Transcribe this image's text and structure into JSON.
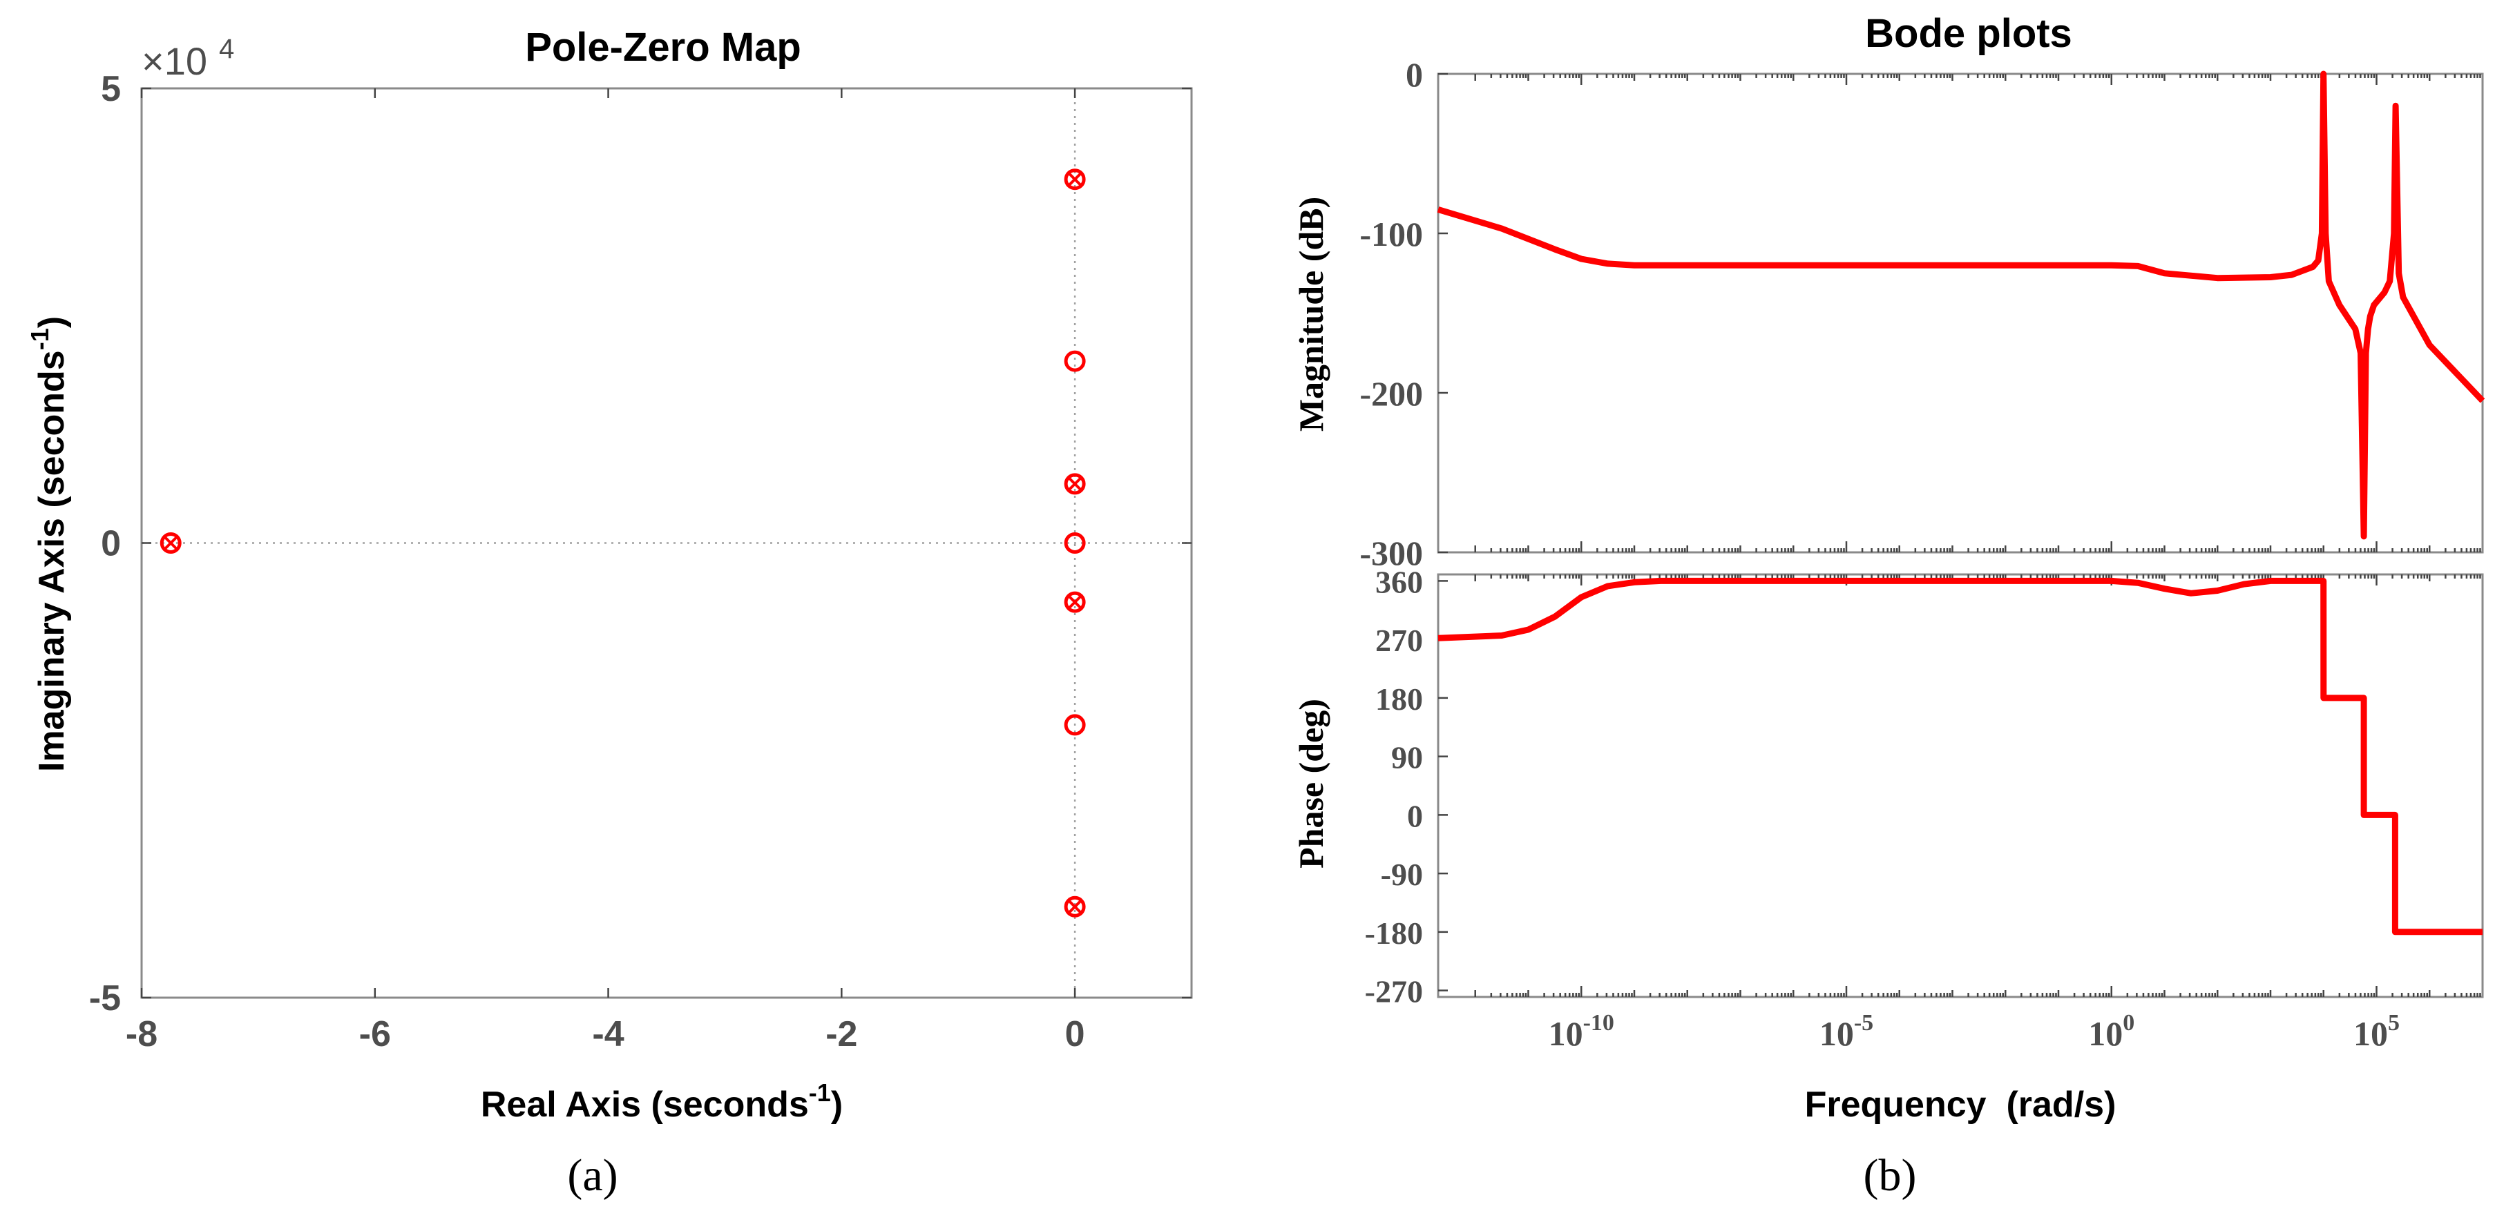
{
  "chart_data": [
    {
      "type": "scatter",
      "title": "Pole-Zero Map",
      "xlabel": "Real Axis (seconds",
      "ylabel": "Imaginary Axis (seconds",
      "label_exponent": "-1",
      "y_multiplier": "×10",
      "y_multiplier_exp": "4",
      "xlim": [
        -8,
        1
      ],
      "ylim": [
        -50000,
        50000
      ],
      "x_ticks": [
        -8,
        -6,
        -4,
        -2,
        0
      ],
      "x_tick_labels": [
        "-8",
        "-6",
        "-4",
        "-2",
        "0"
      ],
      "y_ticks": [
        -50000,
        0,
        50000
      ],
      "y_tick_labels": [
        "-5",
        "0",
        "5"
      ],
      "series": [
        {
          "name": "pole",
          "marker": "x",
          "x": [
            -7.75,
            0,
            0,
            0,
            0
          ],
          "y": [
            0,
            40000,
            6500,
            -6500,
            -40000
          ]
        },
        {
          "name": "zero",
          "marker": "o",
          "x": [
            -7.75,
            0,
            0,
            0,
            0,
            0,
            0,
            0
          ],
          "y": [
            0,
            40000,
            20000,
            6500,
            0,
            -6500,
            -20000,
            -40000
          ]
        }
      ],
      "caption": "(a)"
    },
    {
      "type": "line",
      "title": "Bode plots",
      "xlabel": "Frequency  (rad/s)",
      "x_scale": "log",
      "x_ticks": [
        -10,
        -5,
        0,
        5
      ],
      "x_tick_labels": [
        "10",
        "10",
        "10",
        "10"
      ],
      "x_tick_exps": [
        "-10",
        "-5",
        "0",
        "5"
      ],
      "xlim": [
        -12.7,
        7
      ],
      "magnitude": {
        "ylabel": "Magnitude (dB)",
        "ylim": [
          -300,
          0
        ],
        "y_ticks": [
          0,
          -100,
          -200,
          -300
        ],
        "y_tick_labels": [
          "0",
          "-100",
          "-200",
          "-300"
        ],
        "log10_frequency": [
          -12.7,
          -11.5,
          -10.5,
          -10,
          -9.5,
          -9,
          -5,
          0,
          0.5,
          1,
          2,
          3,
          3.4,
          3.8,
          3.9,
          3.97,
          4.0,
          4.04,
          4.1,
          4.3,
          4.6,
          4.7,
          4.76,
          4.8,
          4.84,
          4.88,
          4.95,
          5.05,
          5.15,
          5.25,
          5.33,
          5.36,
          5.42,
          5.5,
          6,
          7
        ],
        "values": [
          -85,
          -97,
          -110,
          -116,
          -119,
          -120,
          -120,
          -120,
          -120.5,
          -125,
          -128,
          -127.5,
          -126,
          -121,
          -117,
          -100,
          0,
          -100,
          -130,
          -145,
          -160,
          -175,
          -290,
          -175,
          -160,
          -152,
          -145,
          -141,
          -137,
          -130,
          -100,
          -20,
          -125,
          -140,
          -170,
          -205
        ]
      },
      "phase": {
        "ylabel": "Phase (deg)",
        "ylim": [
          -280,
          370
        ],
        "y_ticks": [
          360,
          270,
          180,
          90,
          0,
          -90,
          -180,
          -270
        ],
        "y_tick_labels": [
          "360",
          "270",
          "180",
          "90",
          "0",
          "-90",
          "-180",
          "-270"
        ],
        "log10_frequency": [
          -12.7,
          -11.5,
          -11,
          -10.5,
          -10,
          -9.5,
          -9,
          -8.5,
          -5,
          0,
          0.5,
          1,
          1.5,
          2,
          2.5,
          3,
          4,
          4.0001,
          4.76,
          4.7601,
          5.35,
          5.3501,
          7
        ],
        "values": [
          272,
          276,
          285,
          305,
          335,
          352,
          358,
          360,
          360,
          360,
          357,
          348,
          341,
          345,
          355,
          360,
          360,
          180,
          180,
          0,
          0,
          -180,
          -180
        ]
      },
      "caption": "(b)"
    }
  ]
}
